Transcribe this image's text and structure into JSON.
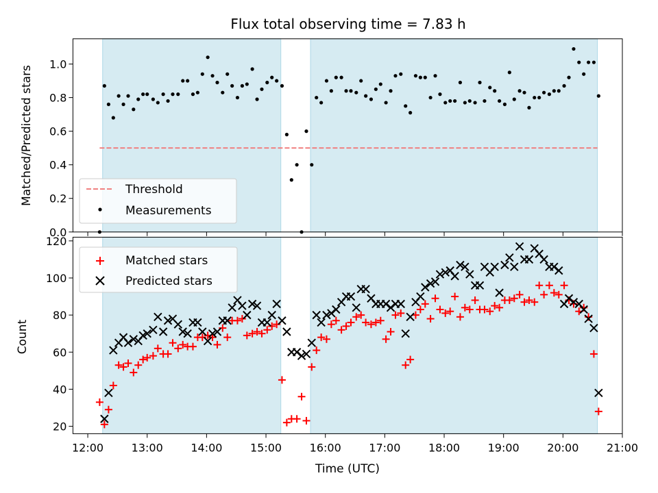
{
  "chart_data": [
    {
      "type": "scatter",
      "title": "Flux total observing time = 7.83 h",
      "ylabel": "Matched/Predicted stars",
      "xlabel": "",
      "x_unit": "hours UTC",
      "xlim": [
        11.75,
        21.0
      ],
      "ylim": [
        0,
        1.15
      ],
      "yticks": [
        0.0,
        0.2,
        0.4,
        0.6,
        0.8,
        1.0
      ],
      "ytick_labels": [
        "0.0",
        "0.2",
        "0.4",
        "0.6",
        "0.8",
        "1.0"
      ],
      "grid": false,
      "legend_position": "lower-left",
      "observing_windows": [
        [
          12.25,
          15.25
        ],
        [
          15.75,
          20.58
        ]
      ],
      "threshold": {
        "name": "Threshold",
        "value": 0.5,
        "x_range": [
          12.2,
          20.58
        ],
        "color": "#f08080"
      },
      "series": [
        {
          "name": "Measurements",
          "marker": "dot",
          "color": "#000000",
          "x": [
            12.2,
            12.28,
            12.35,
            12.43,
            12.52,
            12.6,
            12.68,
            12.77,
            12.85,
            12.93,
            13.0,
            13.1,
            13.18,
            13.27,
            13.35,
            13.43,
            13.52,
            13.6,
            13.68,
            13.77,
            13.85,
            13.93,
            14.02,
            14.1,
            14.18,
            14.27,
            14.35,
            14.43,
            14.52,
            14.6,
            14.68,
            14.77,
            14.85,
            14.93,
            15.02,
            15.1,
            15.18,
            15.27,
            15.35,
            15.43,
            15.52,
            15.6,
            15.68,
            15.77,
            15.85,
            15.93,
            16.02,
            16.1,
            16.18,
            16.27,
            16.35,
            16.43,
            16.52,
            16.6,
            16.68,
            16.77,
            16.85,
            16.93,
            17.02,
            17.1,
            17.18,
            17.27,
            17.35,
            17.43,
            17.52,
            17.6,
            17.68,
            17.77,
            17.85,
            17.93,
            18.02,
            18.1,
            18.18,
            18.27,
            18.35,
            18.43,
            18.52,
            18.6,
            18.68,
            18.77,
            18.85,
            18.93,
            19.02,
            19.1,
            19.18,
            19.27,
            19.35,
            19.43,
            19.52,
            19.6,
            19.68,
            19.77,
            19.85,
            19.93,
            20.02,
            20.1,
            20.18,
            20.27,
            20.35,
            20.43,
            20.52,
            20.6
          ],
          "y": [
            0.0,
            0.87,
            0.76,
            0.68,
            0.81,
            0.76,
            0.81,
            0.73,
            0.79,
            0.82,
            0.82,
            0.79,
            0.77,
            0.82,
            0.78,
            0.82,
            0.82,
            0.9,
            0.9,
            0.82,
            0.83,
            0.94,
            1.04,
            0.93,
            0.89,
            0.83,
            0.94,
            0.87,
            0.8,
            0.87,
            0.88,
            0.97,
            0.79,
            0.85,
            0.89,
            0.92,
            0.9,
            0.87,
            0.58,
            0.31,
            0.4,
            0.0,
            0.6,
            0.4,
            0.8,
            0.77,
            0.9,
            0.84,
            0.92,
            0.92,
            0.84,
            0.84,
            0.83,
            0.9,
            0.81,
            0.79,
            0.85,
            0.88,
            0.77,
            0.84,
            0.93,
            0.94,
            0.75,
            0.71,
            0.93,
            0.92,
            0.92,
            0.8,
            0.93,
            0.82,
            0.77,
            0.78,
            0.78,
            0.89,
            0.77,
            0.78,
            0.77,
            0.89,
            0.78,
            0.86,
            0.84,
            0.78,
            0.76,
            0.95,
            0.79,
            0.84,
            0.83,
            0.74,
            0.8,
            0.8,
            0.83,
            0.82,
            0.84,
            0.84,
            0.87,
            0.92,
            1.09,
            1.01,
            0.94,
            1.01,
            1.01,
            0.81
          ]
        }
      ]
    },
    {
      "type": "scatter",
      "title": "",
      "xlabel": "Time (UTC)",
      "ylabel": "Count",
      "x_unit": "hours UTC",
      "xlim": [
        11.75,
        21.0
      ],
      "ylim": [
        16,
        122
      ],
      "xticks": [
        12,
        13,
        14,
        15,
        16,
        17,
        18,
        19,
        20,
        21
      ],
      "xtick_labels": [
        "12:00",
        "13:00",
        "14:00",
        "15:00",
        "16:00",
        "17:00",
        "18:00",
        "19:00",
        "20:00",
        "21:00"
      ],
      "yticks": [
        20,
        40,
        60,
        80,
        100,
        120
      ],
      "ytick_labels": [
        "20",
        "40",
        "60",
        "80",
        "100",
        "120"
      ],
      "grid": false,
      "legend_position": "top-left",
      "observing_windows": [
        [
          12.25,
          15.25
        ],
        [
          15.75,
          20.58
        ]
      ],
      "series": [
        {
          "name": "Matched stars",
          "marker": "plus",
          "color": "#ff0000",
          "x": [
            12.2,
            12.28,
            12.35,
            12.43,
            12.52,
            12.6,
            12.68,
            12.77,
            12.85,
            12.93,
            13.0,
            13.1,
            13.18,
            13.27,
            13.35,
            13.43,
            13.52,
            13.6,
            13.68,
            13.77,
            13.85,
            13.93,
            14.02,
            14.1,
            14.18,
            14.27,
            14.35,
            14.43,
            14.52,
            14.6,
            14.68,
            14.77,
            14.85,
            14.93,
            15.02,
            15.1,
            15.18,
            15.27,
            15.35,
            15.43,
            15.52,
            15.6,
            15.68,
            15.77,
            15.85,
            15.93,
            16.02,
            16.1,
            16.18,
            16.27,
            16.35,
            16.43,
            16.52,
            16.6,
            16.68,
            16.77,
            16.85,
            16.93,
            17.02,
            17.1,
            17.18,
            17.27,
            17.35,
            17.43,
            17.52,
            17.6,
            17.68,
            17.77,
            17.85,
            17.93,
            18.02,
            18.1,
            18.18,
            18.27,
            18.35,
            18.43,
            18.52,
            18.6,
            18.68,
            18.77,
            18.85,
            18.93,
            19.02,
            19.1,
            19.18,
            19.27,
            19.35,
            19.43,
            19.52,
            19.6,
            19.68,
            19.77,
            19.85,
            19.93,
            20.02,
            20.1,
            20.18,
            20.27,
            20.35,
            20.43,
            20.52,
            20.6
          ],
          "y": [
            33,
            21,
            29,
            42,
            53,
            52,
            54,
            49,
            53,
            56,
            57,
            58,
            62,
            59,
            59,
            65,
            62,
            64,
            63,
            63,
            68,
            68,
            69,
            68,
            64,
            73,
            68,
            77,
            77,
            78,
            69,
            70,
            71,
            70,
            72,
            74,
            75,
            45,
            22,
            24,
            24,
            36,
            23,
            52,
            61,
            68,
            67,
            75,
            77,
            72,
            74,
            76,
            79,
            80,
            76,
            75,
            76,
            77,
            67,
            71,
            80,
            81,
            53,
            56,
            80,
            83,
            86,
            78,
            89,
            83,
            81,
            82,
            90,
            79,
            84,
            83,
            88,
            83,
            83,
            82,
            85,
            84,
            88,
            88,
            89,
            91,
            87,
            88,
            87,
            96,
            91,
            96,
            92,
            91,
            96,
            88,
            86,
            82,
            84,
            79,
            59,
            28
          ]
        },
        {
          "name": "Predicted stars",
          "marker": "x",
          "color": "#000000",
          "x": [
            12.28,
            12.35,
            12.43,
            12.52,
            12.6,
            12.68,
            12.77,
            12.85,
            12.93,
            13.0,
            13.1,
            13.18,
            13.27,
            13.35,
            13.43,
            13.52,
            13.6,
            13.68,
            13.77,
            13.85,
            13.93,
            14.02,
            14.1,
            14.18,
            14.27,
            14.35,
            14.43,
            14.52,
            14.6,
            14.68,
            14.77,
            14.85,
            14.93,
            15.02,
            15.1,
            15.18,
            15.27,
            15.35,
            15.43,
            15.52,
            15.6,
            15.68,
            15.77,
            15.85,
            15.93,
            16.02,
            16.1,
            16.18,
            16.27,
            16.35,
            16.43,
            16.52,
            16.6,
            16.68,
            16.77,
            16.85,
            16.93,
            17.02,
            17.1,
            17.18,
            17.27,
            17.35,
            17.43,
            17.52,
            17.6,
            17.68,
            17.77,
            17.85,
            17.93,
            18.02,
            18.1,
            18.18,
            18.27,
            18.35,
            18.43,
            18.52,
            18.6,
            18.68,
            18.77,
            18.85,
            18.93,
            19.02,
            19.1,
            19.18,
            19.27,
            19.35,
            19.43,
            19.52,
            19.6,
            19.68,
            19.77,
            19.85,
            19.93,
            20.02,
            20.1,
            20.18,
            20.27,
            20.35,
            20.43,
            20.52,
            20.6
          ],
          "y": [
            24,
            38,
            61,
            65,
            68,
            65,
            67,
            66,
            69,
            70,
            72,
            79,
            71,
            77,
            78,
            75,
            71,
            70,
            76,
            76,
            71,
            66,
            70,
            71,
            77,
            77,
            84,
            88,
            85,
            80,
            86,
            85,
            76,
            76,
            80,
            86,
            77,
            71,
            60,
            60,
            58,
            59,
            65,
            80,
            76,
            80,
            81,
            83,
            87,
            90,
            90,
            84,
            94,
            94,
            89,
            86,
            86,
            86,
            84,
            86,
            86,
            70,
            79,
            87,
            90,
            95,
            97,
            98,
            102,
            103,
            104,
            101,
            107,
            106,
            102,
            96,
            96,
            106,
            103,
            106,
            92,
            107,
            111,
            106,
            117,
            110,
            110,
            116,
            113,
            110,
            106,
            106,
            104,
            86,
            89,
            87,
            86,
            83,
            78,
            73,
            38
          ]
        }
      ]
    }
  ]
}
